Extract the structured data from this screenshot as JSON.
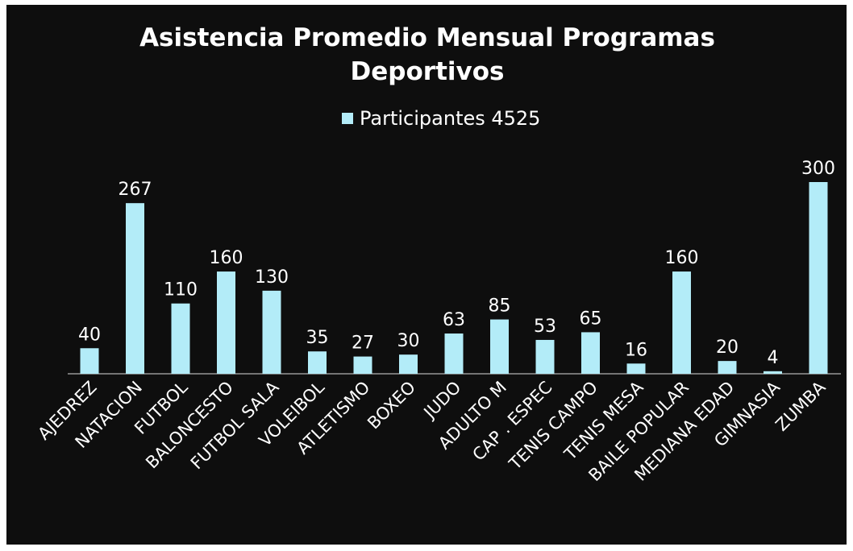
{
  "chart_data": {
    "type": "bar",
    "title": "Asistencia Promedio Mensual Programas Deportivos",
    "legend": "Participantes 4525",
    "categories": [
      "AJEDREZ",
      "NATACION",
      "FUTBOL",
      "BALONCESTO",
      "FUTBOL SALA",
      "VOLEIBOL",
      "ATLETISMO",
      "BOXEO",
      "JUDO",
      "ADULTO M",
      "CAP . ESPEC",
      "TENIS CAMPO",
      "TENIS MESA",
      "BAILE POPULAR",
      "MEDIANA EDAD",
      "GIMNASIA",
      "ZUMBA"
    ],
    "values": [
      40,
      267,
      110,
      160,
      130,
      35,
      27,
      30,
      63,
      85,
      53,
      65,
      16,
      160,
      20,
      4,
      300
    ],
    "color": "#b3ecf8"
  }
}
